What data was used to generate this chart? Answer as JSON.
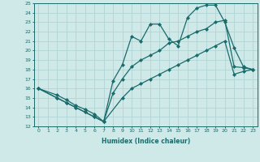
{
  "xlabel": "Humidex (Indice chaleur)",
  "xlim": [
    -0.5,
    23.5
  ],
  "ylim": [
    12,
    25
  ],
  "xticks": [
    0,
    1,
    2,
    3,
    4,
    5,
    6,
    7,
    8,
    9,
    10,
    11,
    12,
    13,
    14,
    15,
    16,
    17,
    18,
    19,
    20,
    21,
    22,
    23
  ],
  "yticks": [
    12,
    13,
    14,
    15,
    16,
    17,
    18,
    19,
    20,
    21,
    22,
    23,
    24,
    25
  ],
  "background_color": "#cfe8e8",
  "grid_color": "#b0d4d4",
  "line_color": "#1a6b6b",
  "line1_x": [
    0,
    2,
    3,
    4,
    5,
    6,
    7,
    8,
    9,
    10,
    11,
    12,
    13,
    14,
    15,
    16,
    17,
    18,
    19,
    20,
    21,
    22,
    23
  ],
  "line1_y": [
    16.0,
    15.3,
    14.8,
    14.2,
    13.8,
    13.3,
    12.5,
    15.5,
    17.0,
    18.3,
    19.0,
    19.5,
    20.0,
    20.8,
    21.0,
    21.5,
    22.0,
    22.3,
    23.0,
    23.2,
    18.3,
    18.2,
    18.0
  ],
  "line2_x": [
    0,
    2,
    3,
    4,
    5,
    6,
    7,
    8,
    9,
    10,
    11,
    12,
    13,
    14,
    15,
    16,
    17,
    18,
    19,
    20,
    21,
    22,
    23
  ],
  "line2_y": [
    16.0,
    15.0,
    14.5,
    14.0,
    13.5,
    13.0,
    12.5,
    16.8,
    18.5,
    21.5,
    21.0,
    22.8,
    22.8,
    21.2,
    20.5,
    23.5,
    24.5,
    24.8,
    24.8,
    23.0,
    20.3,
    18.3,
    18.0
  ],
  "line3_x": [
    0,
    2,
    3,
    4,
    5,
    6,
    7,
    9,
    10,
    11,
    12,
    13,
    14,
    15,
    16,
    17,
    18,
    19,
    20,
    21,
    22,
    23
  ],
  "line3_y": [
    16.0,
    15.0,
    14.5,
    14.0,
    13.5,
    13.0,
    12.5,
    15.0,
    16.0,
    16.5,
    17.0,
    17.5,
    18.0,
    18.5,
    19.0,
    19.5,
    20.0,
    20.5,
    21.0,
    17.5,
    17.8,
    18.0
  ]
}
